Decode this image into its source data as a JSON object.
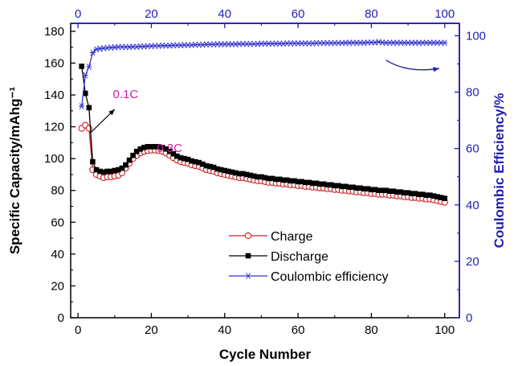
{
  "chart_data": {
    "type": "line",
    "xlabel": "Cycle Number",
    "ylabel_left": "Specific Capacity/mAhg⁻¹",
    "ylabel_right": "Coulombic Efficiency/%",
    "xlim": [
      -2,
      104
    ],
    "ylim_left": [
      0,
      185
    ],
    "ylim_right": [
      0,
      104.4
    ],
    "x_ticks": [
      "0",
      "20",
      "40",
      "60",
      "80",
      "100"
    ],
    "x_tick_values": [
      0,
      20,
      40,
      60,
      80,
      100
    ],
    "y_left_ticks": [
      "0",
      "20",
      "40",
      "60",
      "80",
      "100",
      "120",
      "140",
      "160",
      "180"
    ],
    "y_left_tick_values": [
      0,
      20,
      40,
      60,
      80,
      100,
      120,
      140,
      160,
      180
    ],
    "y_right_ticks": [
      "0",
      "20",
      "40",
      "60",
      "80",
      "100"
    ],
    "y_right_tick_values": [
      0,
      20,
      40,
      60,
      80,
      100
    ],
    "grid": false,
    "legend_position": "lower-center",
    "colors": {
      "axis_left": "#000000",
      "axis_right": "#1f1fb4",
      "charge": "#cc2020",
      "discharge": "#000000",
      "efficiency": "#3333cc",
      "annotation": "#d020a0"
    },
    "annotations": [
      {
        "text": "0.1C",
        "x": 9.5,
        "y": 138
      },
      {
        "text": "0.3C",
        "x": 21.5,
        "y": 104
      }
    ],
    "series": [
      {
        "name": "Charge",
        "axis": "left",
        "marker": "open-circle",
        "x": [
          1,
          2,
          3,
          4,
          5,
          6,
          7,
          8,
          9,
          10,
          11,
          12,
          13,
          14,
          15,
          16,
          17,
          18,
          19,
          20,
          21,
          22,
          23,
          24,
          25,
          26,
          27,
          28,
          29,
          30,
          31,
          32,
          33,
          34,
          35,
          36,
          37,
          38,
          39,
          40,
          41,
          42,
          43,
          44,
          45,
          46,
          47,
          48,
          49,
          50,
          51,
          52,
          53,
          54,
          55,
          56,
          57,
          58,
          59,
          60,
          61,
          62,
          63,
          64,
          65,
          66,
          67,
          68,
          69,
          70,
          71,
          72,
          73,
          74,
          75,
          76,
          77,
          78,
          79,
          80,
          81,
          82,
          83,
          84,
          85,
          86,
          87,
          88,
          89,
          90,
          91,
          92,
          93,
          94,
          95,
          96,
          97,
          98,
          99,
          100
        ],
        "values": [
          119,
          121,
          119,
          93,
          90,
          89,
          88,
          88.5,
          88.5,
          89,
          89.5,
          91,
          94,
          97,
          100,
          102,
          103.5,
          104.5,
          105,
          105.3,
          105.3,
          105,
          104.5,
          103.5,
          102,
          100.5,
          99,
          98,
          97.5,
          97,
          96,
          95.5,
          95,
          94,
          93,
          92.5,
          92,
          91,
          90.5,
          90,
          89.5,
          89,
          88.5,
          88,
          88,
          87.5,
          87,
          86.5,
          86,
          86,
          85.5,
          85,
          85,
          84.5,
          84.5,
          84,
          84,
          83.5,
          83.5,
          83,
          83,
          82.5,
          82.5,
          82,
          82,
          81.5,
          81.5,
          81,
          81,
          80.5,
          80.5,
          80,
          80,
          79.5,
          79.5,
          79,
          79,
          78.5,
          78.5,
          78,
          78,
          77.5,
          77.5,
          77.5,
          77,
          77,
          76.5,
          76.5,
          76,
          76,
          75.5,
          75.5,
          75,
          75,
          74.5,
          74.5,
          74,
          73.5,
          73,
          72.5
        ]
      },
      {
        "name": "Discharge",
        "axis": "left",
        "marker": "filled-square",
        "x": [
          1,
          2,
          3,
          4,
          5,
          6,
          7,
          8,
          9,
          10,
          11,
          12,
          13,
          14,
          15,
          16,
          17,
          18,
          19,
          20,
          21,
          22,
          23,
          24,
          25,
          26,
          27,
          28,
          29,
          30,
          31,
          32,
          33,
          34,
          35,
          36,
          37,
          38,
          39,
          40,
          41,
          42,
          43,
          44,
          45,
          46,
          47,
          48,
          49,
          50,
          51,
          52,
          53,
          54,
          55,
          56,
          57,
          58,
          59,
          60,
          61,
          62,
          63,
          64,
          65,
          66,
          67,
          68,
          69,
          70,
          71,
          72,
          73,
          74,
          75,
          76,
          77,
          78,
          79,
          80,
          81,
          82,
          83,
          84,
          85,
          86,
          87,
          88,
          89,
          90,
          91,
          92,
          93,
          94,
          95,
          96,
          97,
          98,
          99,
          100
        ],
        "values": [
          158,
          141,
          132,
          98,
          93,
          92,
          91.5,
          92,
          92,
          92.5,
          93,
          94,
          96,
          99,
          102,
          104.5,
          106,
          107,
          107.5,
          107.5,
          107.5,
          107.5,
          107,
          106,
          104.5,
          103,
          101.5,
          100.5,
          100,
          99.5,
          98.5,
          98,
          97.5,
          96.5,
          95.5,
          95,
          94.5,
          93.5,
          93,
          92.5,
          92,
          91.5,
          91,
          90.5,
          90.5,
          90,
          89.5,
          89,
          88.5,
          88.5,
          88,
          87.5,
          87.5,
          87,
          87,
          86.5,
          86.5,
          86,
          86,
          85.5,
          85.5,
          85,
          85,
          84.5,
          84.5,
          84,
          84,
          83.5,
          83.5,
          83,
          83,
          82.5,
          82.5,
          82,
          82,
          81.5,
          81.5,
          81,
          81,
          80.5,
          80.5,
          80,
          80,
          80,
          79.5,
          79.5,
          79,
          79,
          78.5,
          78.5,
          78,
          78,
          77.5,
          77.5,
          77,
          77,
          76.5,
          76,
          75.5,
          75
        ]
      },
      {
        "name": "Coulombic efficiency",
        "axis": "right",
        "marker": "star",
        "x": [
          1,
          2,
          3,
          4,
          5,
          6,
          7,
          8,
          9,
          10,
          11,
          12,
          13,
          14,
          15,
          16,
          17,
          18,
          19,
          20,
          21,
          22,
          23,
          24,
          25,
          26,
          27,
          28,
          29,
          30,
          31,
          32,
          33,
          34,
          35,
          36,
          37,
          38,
          39,
          40,
          41,
          42,
          43,
          44,
          45,
          46,
          47,
          48,
          49,
          50,
          51,
          52,
          53,
          54,
          55,
          56,
          57,
          58,
          59,
          60,
          61,
          62,
          63,
          64,
          65,
          66,
          67,
          68,
          69,
          70,
          71,
          72,
          73,
          74,
          75,
          76,
          77,
          78,
          79,
          80,
          81,
          82,
          83,
          84,
          85,
          86,
          87,
          88,
          89,
          90,
          91,
          92,
          93,
          94,
          95,
          96,
          97,
          98,
          99,
          100
        ],
        "values": [
          75,
          86,
          89,
          94,
          95.2,
          95.4,
          95.6,
          95.7,
          95.8,
          95.9,
          96,
          96,
          96,
          96,
          96.1,
          96.1,
          96.2,
          96.2,
          96.3,
          96.3,
          96.4,
          96.4,
          96.5,
          96.5,
          96.5,
          96.6,
          96.6,
          96.6,
          96.7,
          96.7,
          96.7,
          96.8,
          96.8,
          96.8,
          96.9,
          96.9,
          96.9,
          97,
          97,
          97,
          97,
          97,
          97,
          97.1,
          97.1,
          97.1,
          97.1,
          97.1,
          97.1,
          97.2,
          97.2,
          97.2,
          97.2,
          97.2,
          97.2,
          97.2,
          97.3,
          97.3,
          97.3,
          97.3,
          97.3,
          97.3,
          97.3,
          97.3,
          97.4,
          97.4,
          97.4,
          97.4,
          97.4,
          97.4,
          97.4,
          97.4,
          97.5,
          97.5,
          97.5,
          97.5,
          97.5,
          97.5,
          97.6,
          97.6,
          97.6,
          97.8,
          97.6,
          97.5,
          97.5,
          97.5,
          97.5,
          97.5,
          97.5,
          97.5,
          97.5,
          97.5,
          97.5,
          97.5,
          97.5,
          97.5,
          97.5,
          97.5,
          97.5,
          97.5
        ]
      }
    ]
  }
}
